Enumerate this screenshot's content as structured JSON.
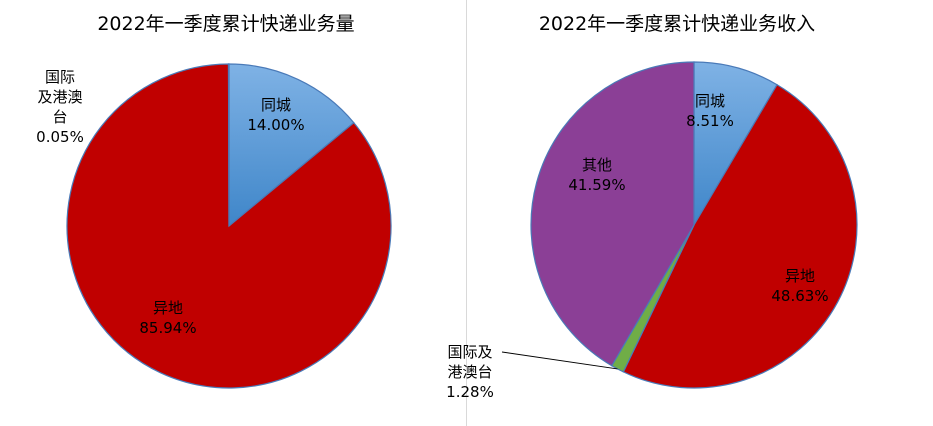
{
  "chart_data": [
    {
      "type": "pie",
      "title": "2022年一季度累计快递业务量",
      "slices": [
        {
          "name": "同城",
          "value": 14.0,
          "label_lines": [
            "同城"
          ],
          "pct": "14.00%",
          "color": "#5b9bd5"
        },
        {
          "name": "异地",
          "value": 85.94,
          "label_lines": [
            "异地"
          ],
          "pct": "85.94%",
          "color": "#c00000"
        },
        {
          "name": "国际及港澳台",
          "value": 0.05,
          "label_lines": [
            "国际",
            "及港澳",
            "台"
          ],
          "pct": "0.05%",
          "color": "#70ad47"
        }
      ]
    },
    {
      "type": "pie",
      "title": "2022年一季度累计快递业务收入",
      "slices": [
        {
          "name": "同城",
          "value": 8.51,
          "label_lines": [
            "同城"
          ],
          "pct": "8.51%",
          "color": "#5b9bd5"
        },
        {
          "name": "异地",
          "value": 48.63,
          "label_lines": [
            "异地"
          ],
          "pct": "48.63%",
          "color": "#c00000"
        },
        {
          "name": "国际及港澳台",
          "value": 1.28,
          "label_lines": [
            "国际及",
            "港澳台"
          ],
          "pct": "1.28%",
          "color": "#70ad47"
        },
        {
          "name": "其他",
          "value": 41.59,
          "label_lines": [
            "其他"
          ],
          "pct": "41.59%",
          "color": "#8b3f96"
        }
      ]
    }
  ]
}
